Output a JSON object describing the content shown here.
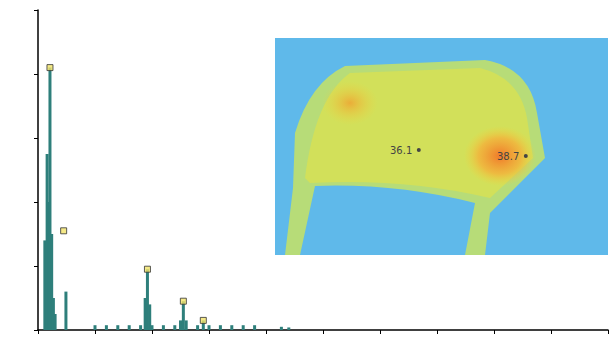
{
  "chart_data": {
    "type": "bar",
    "xlim": [
      0,
      10
    ],
    "ylim": [
      0,
      100
    ],
    "xticks": [
      0,
      1,
      2,
      3,
      4,
      5,
      6,
      7,
      8,
      9,
      10
    ],
    "yticks": [
      0,
      20,
      40,
      60,
      80,
      100
    ],
    "tick_labels": false,
    "grid": false,
    "series": [
      {
        "type": "bar",
        "color": "#2e7f7b",
        "x": [
          0.12,
          0.16,
          0.19,
          0.21,
          0.24,
          0.27,
          0.3,
          0.49,
          1.0,
          1.2,
          1.4,
          1.6,
          1.8,
          1.88,
          1.92,
          1.96,
          2.0,
          2.2,
          2.4,
          2.5,
          2.55,
          2.6,
          2.8,
          2.9,
          3.0,
          3.2,
          3.4,
          3.6,
          3.8,
          4.27,
          4.4
        ],
        "values": [
          28,
          55,
          40,
          82,
          30,
          10,
          5,
          12,
          1.5,
          1.5,
          1.5,
          1.5,
          1.5,
          10,
          19,
          8,
          1.5,
          1.5,
          1.5,
          3,
          9,
          3,
          1.5,
          3,
          1.5,
          1.5,
          1.5,
          1.5,
          1.5,
          1,
          0.8
        ]
      },
      {
        "type": "scatter",
        "marker": "square",
        "color": "#f3e46a",
        "x": [
          0.21,
          0.45,
          1.92,
          2.55,
          2.9
        ],
        "values": [
          82,
          31,
          19,
          9,
          3
        ]
      }
    ],
    "annotations": [
      "36.1",
      "38.7"
    ]
  }
}
